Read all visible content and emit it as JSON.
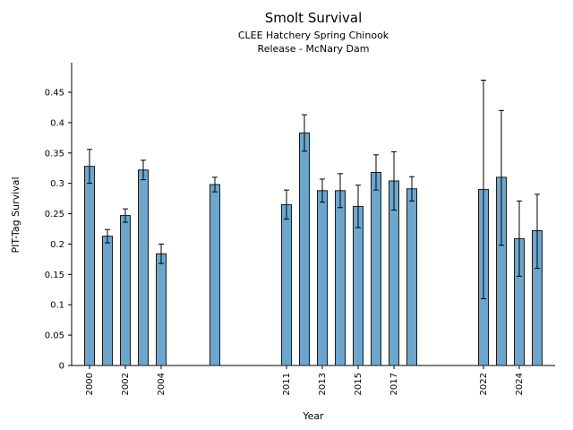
{
  "chart_data": {
    "type": "bar",
    "title": "Smolt Survival",
    "subtitle1": "CLEE Hatchery Spring Chinook",
    "subtitle2": "Release - McNary Dam",
    "xlabel": "Year",
    "ylabel": "PIT-Tag Survival",
    "ylim": [
      0,
      0.5
    ],
    "xlim": [
      1999,
      2026
    ],
    "grid": false,
    "legend": "none",
    "bar_color": "#6CA6CD",
    "bar_edge_color": "#1a1a1a",
    "error_bar_color": "#000000",
    "yticks": [
      {
        "value": 0,
        "label": "0"
      },
      {
        "value": 0.05,
        "label": "0.05"
      },
      {
        "value": 0.1,
        "label": "0.1"
      },
      {
        "value": 0.15,
        "label": "0.15"
      },
      {
        "value": 0.2,
        "label": "0.2"
      },
      {
        "value": 0.25,
        "label": "0.25"
      },
      {
        "value": 0.3,
        "label": "0.3"
      },
      {
        "value": 0.35,
        "label": "0.35"
      },
      {
        "value": 0.4,
        "label": "0.4"
      },
      {
        "value": 0.45,
        "label": "0.45"
      }
    ],
    "xticks": [
      {
        "year": 2000,
        "label": "2000"
      },
      {
        "year": 2002,
        "label": "2002"
      },
      {
        "year": 2004,
        "label": "2004"
      },
      {
        "year": 2011,
        "label": "2011"
      },
      {
        "year": 2013,
        "label": "2013"
      },
      {
        "year": 2015,
        "label": "2015"
      },
      {
        "year": 2017,
        "label": "2017"
      },
      {
        "year": 2022,
        "label": "2022"
      },
      {
        "year": 2024,
        "label": "2024"
      }
    ],
    "points": [
      {
        "year": 2000,
        "value": 0.328,
        "err_lo": 0.3,
        "err_hi": 0.356
      },
      {
        "year": 2001,
        "value": 0.213,
        "err_lo": 0.202,
        "err_hi": 0.224
      },
      {
        "year": 2002,
        "value": 0.247,
        "err_lo": 0.236,
        "err_hi": 0.258
      },
      {
        "year": 2003,
        "value": 0.322,
        "err_lo": 0.306,
        "err_hi": 0.338
      },
      {
        "year": 2004,
        "value": 0.184,
        "err_lo": 0.168,
        "err_hi": 0.2
      },
      {
        "year": 2007,
        "value": 0.298,
        "err_lo": 0.286,
        "err_hi": 0.31
      },
      {
        "year": 2011,
        "value": 0.265,
        "err_lo": 0.241,
        "err_hi": 0.289
      },
      {
        "year": 2012,
        "value": 0.383,
        "err_lo": 0.353,
        "err_hi": 0.413
      },
      {
        "year": 2013,
        "value": 0.288,
        "err_lo": 0.269,
        "err_hi": 0.307
      },
      {
        "year": 2014,
        "value": 0.288,
        "err_lo": 0.26,
        "err_hi": 0.316
      },
      {
        "year": 2015,
        "value": 0.262,
        "err_lo": 0.227,
        "err_hi": 0.297
      },
      {
        "year": 2016,
        "value": 0.318,
        "err_lo": 0.289,
        "err_hi": 0.347
      },
      {
        "year": 2017,
        "value": 0.304,
        "err_lo": 0.256,
        "err_hi": 0.352
      },
      {
        "year": 2018,
        "value": 0.291,
        "err_lo": 0.271,
        "err_hi": 0.311
      },
      {
        "year": 2022,
        "value": 0.29,
        "err_lo": 0.11,
        "err_hi": 0.47
      },
      {
        "year": 2023,
        "value": 0.31,
        "err_lo": 0.198,
        "err_hi": 0.42
      },
      {
        "year": 2024,
        "value": 0.209,
        "err_lo": 0.147,
        "err_hi": 0.271
      },
      {
        "year": 2025,
        "value": 0.222,
        "err_lo": 0.16,
        "err_hi": 0.282
      }
    ]
  }
}
